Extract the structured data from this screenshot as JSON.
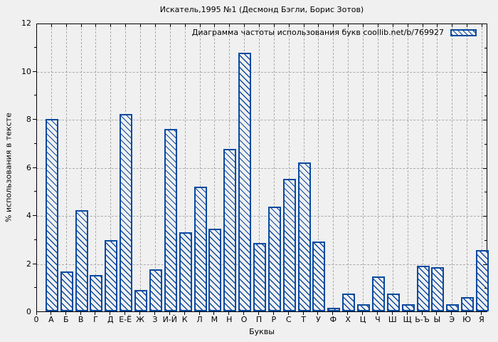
{
  "colors": {
    "bar_blue": "#0a49a0",
    "grid_gray": "#ababab",
    "background": "#f0f0f0",
    "axis_black": "#000000"
  },
  "chart_data": {
    "type": "bar",
    "title": "Искатель,1995 №1 (Десмонд Бэгли, Борис Зотов)",
    "legend_label": "Диаграмма частоты использования букв coollib.net/b/769927",
    "legend_position": "top-right-inside",
    "xlabel": "Буквы",
    "ylabel": "% использования в тексте",
    "ylim": [
      0,
      12
    ],
    "yticks": [
      0,
      2,
      4,
      6,
      8,
      10,
      12
    ],
    "origin_tick_label": "0",
    "grid": true,
    "bar_style": "blue diagonal hatch, hollow",
    "categories": [
      "А",
      "Б",
      "В",
      "Г",
      "Д",
      "Е-Ё",
      "Ж",
      "З",
      "И-Й",
      "К",
      "Л",
      "М",
      "Н",
      "О",
      "П",
      "Р",
      "С",
      "Т",
      "У",
      "Ф",
      "Х",
      "Ц",
      "Ч",
      "Ш",
      "Щ",
      "Ь-Ъ",
      "Ы",
      "Э",
      "Ю",
      "Я"
    ],
    "values": [
      8.0,
      1.65,
      4.2,
      1.5,
      2.95,
      8.2,
      0.9,
      1.75,
      7.6,
      3.3,
      5.2,
      3.45,
      6.75,
      10.75,
      2.85,
      4.35,
      5.5,
      6.2,
      2.9,
      0.15,
      0.75,
      0.3,
      1.45,
      0.75,
      0.3,
      1.9,
      1.85,
      0.3,
      0.6,
      2.55
    ]
  }
}
